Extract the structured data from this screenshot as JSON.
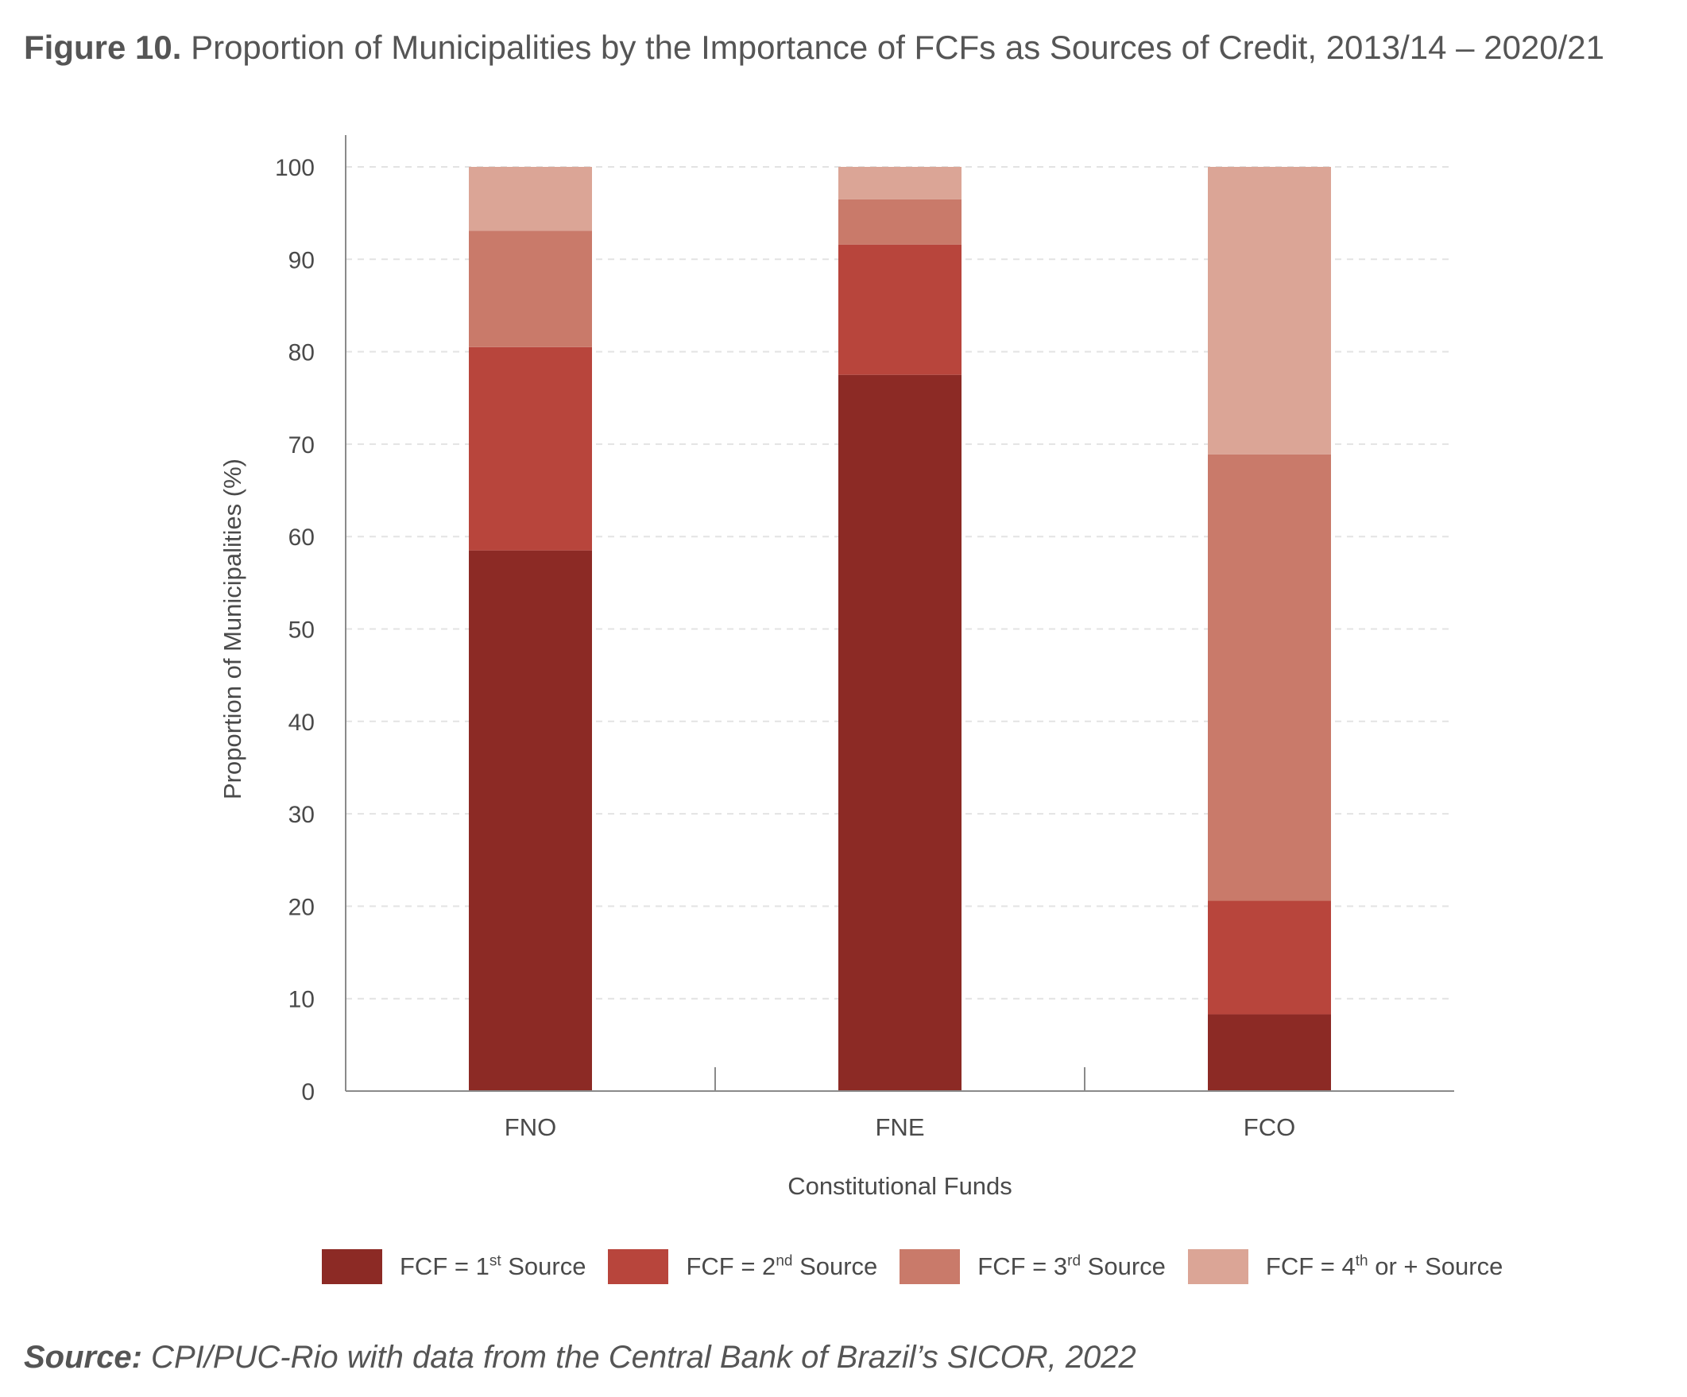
{
  "figure": {
    "label": "Figure 10.",
    "title": " Proportion of Municipalities by the Importance of FCFs as Sources of Credit, 2013/14 – 2020/21"
  },
  "legend": [
    {
      "pre": "FCF = 1",
      "sup": "st",
      "post": " Source",
      "color": "#8c2a25"
    },
    {
      "pre": "FCF = 2",
      "sup": "nd",
      "post": " Source",
      "color": "#b8453c"
    },
    {
      "pre": "FCF = 3",
      "sup": "rd",
      "post": " Source",
      "color": "#c97a6a"
    },
    {
      "pre": "FCF = 4",
      "sup": "th",
      "post": " or + Source",
      "color": "#dba596"
    }
  ],
  "source": {
    "label": "Source:",
    "text": " CPI/PUC-Rio with data from the Central Bank of Brazil’s SICOR, 2022"
  },
  "chart_data": {
    "type": "bar",
    "stacked": true,
    "categories": [
      "FNO",
      "FNE",
      "FCO"
    ],
    "series": [
      {
        "name": "FCF = 1st Source",
        "values": [
          58.5,
          77.5,
          8.3
        ]
      },
      {
        "name": "FCF = 2nd Source",
        "values": [
          22.0,
          14.1,
          12.3
        ]
      },
      {
        "name": "FCF = 3rd Source",
        "values": [
          12.6,
          4.9,
          48.3
        ]
      },
      {
        "name": "FCF = 4th or + Source",
        "values": [
          6.9,
          3.5,
          31.1
        ]
      }
    ],
    "xlabel": "Constitutional Funds",
    "ylabel": "Proportion of Municipalities (%)",
    "ylim": [
      0,
      100
    ],
    "yticks": [
      0,
      10,
      20,
      30,
      40,
      50,
      60,
      70,
      80,
      90,
      100
    ],
    "grid": true,
    "legend_position": "bottom"
  }
}
